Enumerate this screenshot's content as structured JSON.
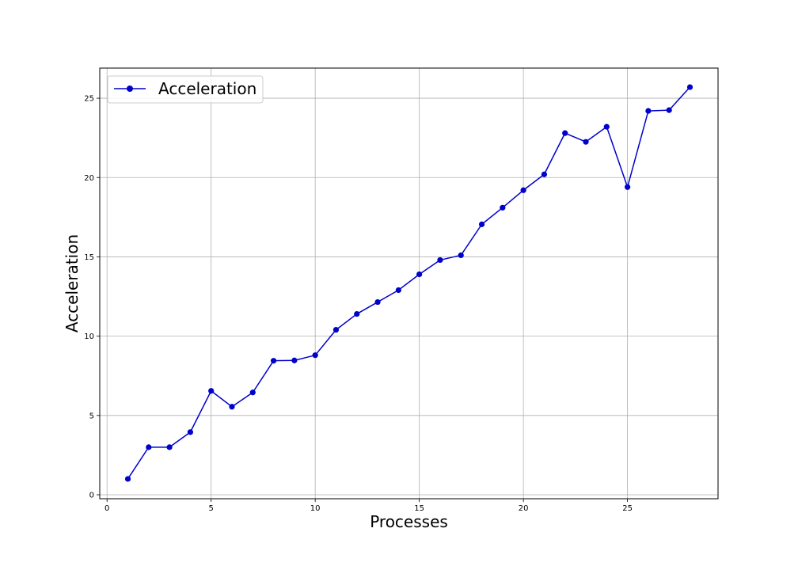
{
  "chart_data": {
    "type": "line",
    "title": "",
    "xlabel": "Processes",
    "ylabel": "Acceleration",
    "xlim": [
      -0.35,
      29.35
    ],
    "ylim": [
      -0.25,
      26.9
    ],
    "xticks": [
      0,
      5,
      10,
      15,
      20,
      25
    ],
    "yticks": [
      0,
      5,
      10,
      15,
      20,
      25
    ],
    "grid": true,
    "legend": {
      "position": "top-left"
    },
    "series": [
      {
        "name": "Acceleration",
        "color": "#0000cc",
        "marker": "circle",
        "x": [
          1,
          2,
          3,
          4,
          5,
          6,
          7,
          8,
          9,
          10,
          11,
          12,
          13,
          14,
          15,
          16,
          17,
          18,
          19,
          20,
          21,
          22,
          23,
          24,
          25,
          26,
          27,
          28
        ],
        "y": [
          1.0,
          3.0,
          3.0,
          3.95,
          6.55,
          5.55,
          6.45,
          8.45,
          8.47,
          8.8,
          10.4,
          11.4,
          12.15,
          12.9,
          13.9,
          14.8,
          15.1,
          17.05,
          18.1,
          19.2,
          20.2,
          22.8,
          22.25,
          23.2,
          19.4,
          24.2,
          24.25,
          25.7
        ]
      }
    ]
  }
}
